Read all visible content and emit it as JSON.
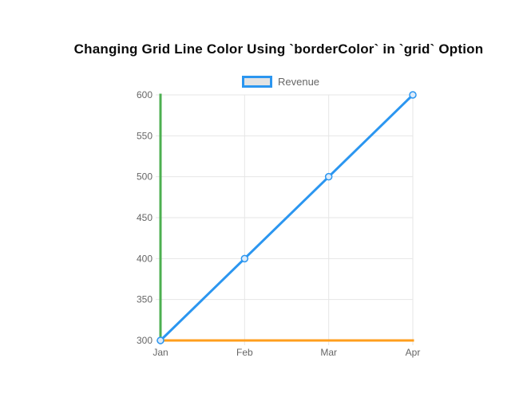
{
  "page": {
    "background": "#ffffff"
  },
  "title": {
    "text": "Changing Grid Line Color Using `borderColor` in `grid` Option"
  },
  "legend": {
    "label": "Revenue",
    "position": "top"
  },
  "chart_data": {
    "type": "line",
    "title": "Changing Grid Line Color Using `borderColor` in `grid` Option",
    "categories": [
      "Jan",
      "Feb",
      "Mar",
      "Apr"
    ],
    "series": [
      {
        "name": "Revenue",
        "values": [
          300,
          400,
          500,
          600
        ]
      }
    ],
    "xlabel": "",
    "ylabel": "",
    "ylim": [
      300,
      600
    ],
    "y_ticks": [
      300,
      350,
      400,
      450,
      500,
      550,
      600
    ],
    "grid": true,
    "legend_position": "top",
    "colors": {
      "line": "#2b96f0",
      "point_fill": "#dcebfa",
      "y_axis_border": "#4caf50",
      "x_axis_border": "#ff9e1c",
      "gridline": "#e6e6e6",
      "tick_label": "#666666",
      "title": "#0b0b0b",
      "legend_fill": "#e3e3e3",
      "legend_text": "#666666"
    }
  }
}
